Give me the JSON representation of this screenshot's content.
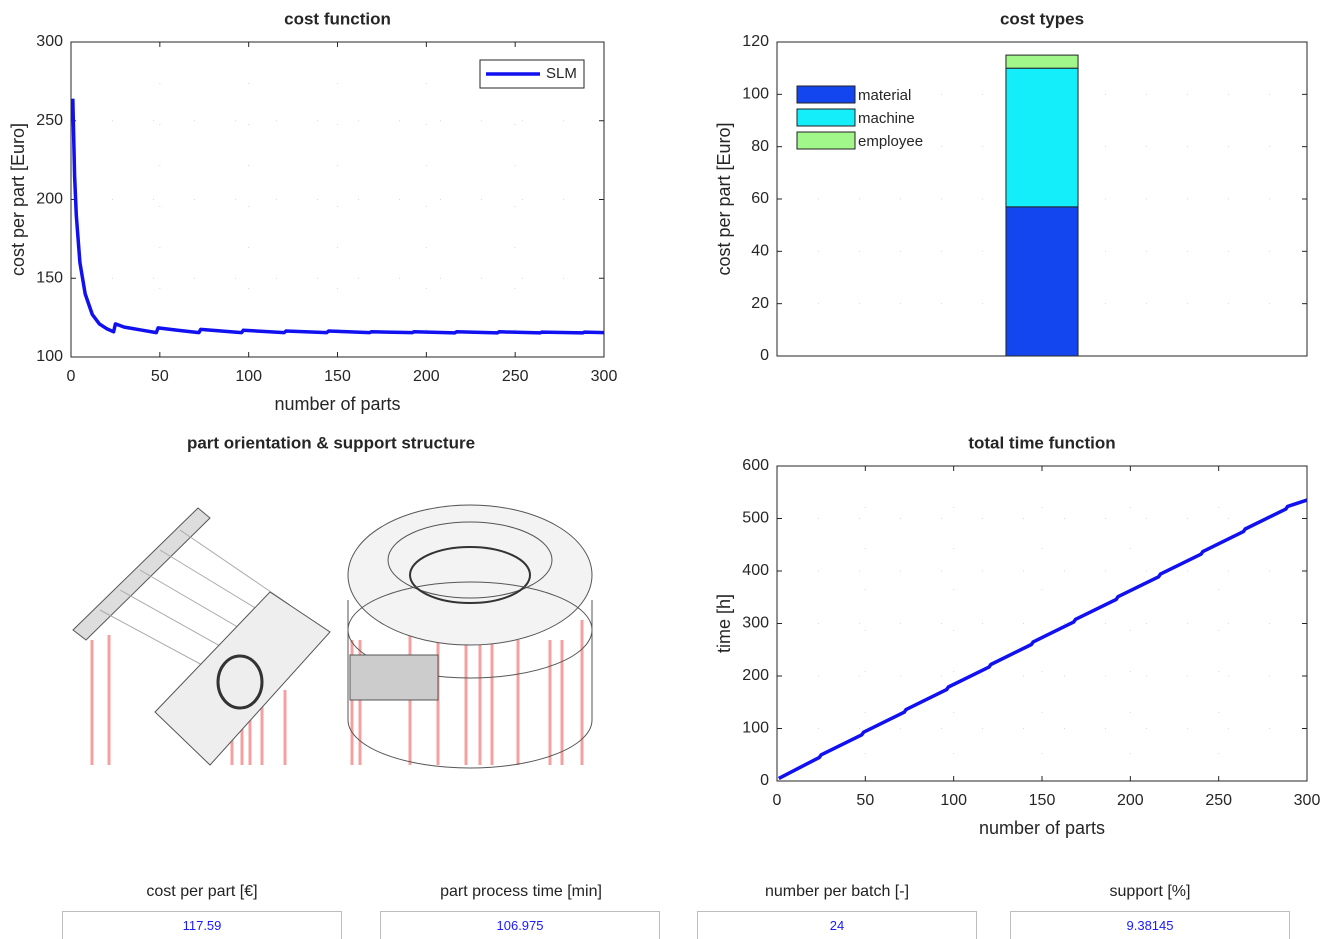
{
  "chart_data": [
    {
      "type": "line",
      "title": "cost function",
      "x_label": "number of parts",
      "y_label": "cost per part [Euro]",
      "x": [
        1,
        2,
        3,
        5,
        8,
        12,
        16,
        20,
        24,
        25,
        30,
        40,
        48,
        49,
        60,
        72,
        73,
        96,
        97,
        120,
        121,
        144,
        145,
        168,
        169,
        192,
        193,
        216,
        217,
        240,
        241,
        264,
        265,
        288,
        289,
        300
      ],
      "series": [
        {
          "name": "SLM",
          "color": "#1010f0",
          "values": [
            264,
            215,
            190,
            160,
            140,
            127,
            121,
            118,
            116,
            121,
            119,
            117,
            115.5,
            118.5,
            117,
            115.5,
            117.5,
            115.5,
            117,
            115.5,
            116.5,
            115.5,
            116.5,
            115.5,
            116,
            115.5,
            116,
            115.3,
            116,
            115.3,
            116,
            115.3,
            115.8,
            115.3,
            115.8,
            115.5
          ]
        }
      ],
      "xlim": [
        0,
        300
      ],
      "xticks": [
        0,
        50,
        100,
        150,
        200,
        250,
        300
      ],
      "ylim": [
        100,
        300
      ],
      "yticks": [
        100,
        150,
        200,
        250,
        300
      ],
      "grid": true,
      "legend": "upper right"
    },
    {
      "type": "bar",
      "stacked": true,
      "title": "cost types",
      "y_label": "cost per part [Euro]",
      "categories": [
        null
      ],
      "series": [
        {
          "name": "material",
          "color": "#1446f0",
          "values": [
            57
          ]
        },
        {
          "name": "machine",
          "color": "#14eefa",
          "values": [
            53
          ]
        },
        {
          "name": "employee",
          "color": "#a2f78a",
          "values": [
            5
          ]
        }
      ],
      "ylim": [
        0,
        120
      ],
      "yticks": [
        0,
        20,
        40,
        60,
        80,
        100,
        120
      ],
      "grid": true,
      "legend": "upper left"
    },
    {
      "type": "line",
      "title": "total time function",
      "x_label": "number of parts",
      "y_label": "time [h]",
      "x": [
        1,
        24,
        25,
        48,
        49,
        72,
        73,
        96,
        97,
        120,
        121,
        144,
        145,
        168,
        169,
        192,
        193,
        216,
        217,
        240,
        241,
        264,
        265,
        288,
        289,
        300
      ],
      "series": [
        {
          "color": "#1010f0",
          "values": [
            5,
            45,
            50,
            88,
            93,
            131,
            136,
            174,
            179,
            217,
            222,
            260,
            265,
            303,
            308,
            346,
            351,
            389,
            394,
            432,
            437,
            475,
            480,
            518,
            523,
            535
          ]
        }
      ],
      "xlim": [
        0,
        300
      ],
      "xticks": [
        0,
        50,
        100,
        150,
        200,
        250,
        300
      ],
      "ylim": [
        0,
        600
      ],
      "yticks": [
        0,
        100,
        200,
        300,
        400,
        500,
        600
      ],
      "grid": true
    }
  ],
  "image_panel": {
    "title": "part orientation & support structure"
  },
  "outputs": [
    {
      "label": "cost per part [€]",
      "value": "117.59"
    },
    {
      "label": "part process time [min]",
      "value": "106.975"
    },
    {
      "label": "number per batch [-]",
      "value": "24"
    },
    {
      "label": "support [%]",
      "value": "9.38145"
    }
  ]
}
